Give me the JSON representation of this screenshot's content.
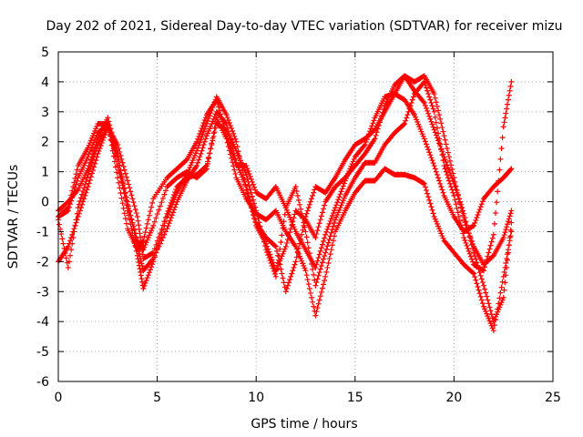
{
  "chart_data": {
    "type": "scatter",
    "title": "Day 202 of 2021, Sidereal Day-to-day VTEC variation (SDTVAR) for receiver mizu",
    "xlabel": "GPS time / hours",
    "ylabel": "SDTVAR / TECUs",
    "xlim": [
      0,
      25
    ],
    "ylim": [
      -6,
      5
    ],
    "x_ticks": [
      "0",
      "5",
      "10",
      "15",
      "20",
      "25"
    ],
    "y_ticks": [
      "5",
      "4",
      "3",
      "2",
      "1",
      "0",
      "-1",
      "-2",
      "-3",
      "-4",
      "-5",
      "-6"
    ],
    "grid": true,
    "marker": "+",
    "color": "#ff0000",
    "series": [
      {
        "points": [
          [
            0,
            -2
          ],
          [
            0.5,
            -1.5
          ],
          [
            1,
            -0.5
          ],
          [
            1.5,
            0.5
          ],
          [
            2,
            1.6
          ],
          [
            2.5,
            2.5
          ],
          [
            3,
            1.5
          ],
          [
            3.5,
            0
          ],
          [
            4,
            -1.5
          ],
          [
            4.3,
            -2.3
          ],
          [
            4.8,
            -1.9
          ],
          [
            5.5,
            -0.9
          ],
          [
            6,
            0
          ],
          [
            6.5,
            0.7
          ],
          [
            7,
            1.2
          ],
          [
            7.5,
            2.2
          ],
          [
            8,
            3
          ],
          [
            8.5,
            2.6
          ],
          [
            9,
            1.3
          ],
          [
            9.5,
            0.5
          ],
          [
            10,
            -0.7
          ],
          [
            10.5,
            -1.2
          ],
          [
            11,
            -1.5
          ],
          [
            11.5,
            -3
          ],
          [
            12,
            -2
          ],
          [
            12.5,
            -0.5
          ],
          [
            13,
            0.5
          ],
          [
            13.5,
            0.3
          ],
          [
            14,
            0.8
          ],
          [
            14.5,
            1.4
          ],
          [
            15,
            1.9
          ],
          [
            15.5,
            2.1
          ],
          [
            16,
            2.4
          ],
          [
            16.5,
            3
          ],
          [
            17,
            3.6
          ],
          [
            17.5,
            4.2
          ],
          [
            18,
            4
          ],
          [
            18.5,
            4.2
          ],
          [
            19,
            3.6
          ],
          [
            19.5,
            2.2
          ],
          [
            20,
            0.8
          ],
          [
            20.5,
            -0.6
          ],
          [
            21,
            -1.5
          ],
          [
            21.5,
            -2.1
          ],
          [
            22,
            -1.8
          ],
          [
            22.5,
            -1.2
          ],
          [
            22.9,
            -0.3
          ]
        ]
      },
      {
        "points": [
          [
            0,
            -0.3
          ],
          [
            0.5,
            0
          ],
          [
            1,
            0.4
          ],
          [
            1.5,
            1.1
          ],
          [
            2,
            2.1
          ],
          [
            2.5,
            2.8
          ],
          [
            3,
            1.6
          ],
          [
            3.5,
            -0.3
          ],
          [
            4,
            -1.8
          ],
          [
            4.3,
            -2.9
          ],
          [
            4.8,
            -2
          ],
          [
            5.5,
            -0.5
          ],
          [
            6,
            0.3
          ],
          [
            6.5,
            0.9
          ],
          [
            7,
            1.7
          ],
          [
            7.5,
            2.6
          ],
          [
            8,
            3.5
          ],
          [
            8.5,
            2.9
          ],
          [
            9,
            2
          ],
          [
            9.5,
            0.4
          ],
          [
            10,
            -0.8
          ],
          [
            10.5,
            -1.4
          ],
          [
            11,
            -2.3
          ],
          [
            11.5,
            -1.5
          ],
          [
            12,
            -0.3
          ],
          [
            12.5,
            -0.6
          ],
          [
            13,
            -1.2
          ],
          [
            13.5,
            0
          ],
          [
            14,
            0.5
          ],
          [
            14.5,
            0.8
          ],
          [
            15,
            1.2
          ],
          [
            15.5,
            1.6
          ],
          [
            16,
            2.1
          ],
          [
            16.5,
            3.2
          ],
          [
            17,
            3.9
          ],
          [
            17.5,
            4.2
          ],
          [
            18,
            3.7
          ],
          [
            18.5,
            3.3
          ],
          [
            19,
            2.4
          ],
          [
            19.5,
            1.5
          ],
          [
            20,
            0.6
          ],
          [
            20.5,
            -0.4
          ],
          [
            21,
            -1.7
          ],
          [
            21.5,
            -2.8
          ],
          [
            22,
            -4
          ],
          [
            22.5,
            -3.2
          ],
          [
            22.9,
            -0.7
          ]
        ]
      },
      {
        "points": [
          [
            0,
            -0.5
          ],
          [
            0.5,
            -0.3
          ],
          [
            1,
            0.8
          ],
          [
            1.5,
            1.5
          ],
          [
            2,
            2.3
          ],
          [
            2.5,
            2.6
          ],
          [
            3,
            1.2
          ],
          [
            3.5,
            -0.1
          ],
          [
            4,
            -1.3
          ],
          [
            4.3,
            -1.6
          ],
          [
            4.8,
            -0.8
          ],
          [
            5.5,
            0.5
          ],
          [
            6,
            0.8
          ],
          [
            6.5,
            1
          ],
          [
            7,
            0.8
          ],
          [
            7.5,
            1.1
          ],
          [
            8,
            2.8
          ],
          [
            8.5,
            2.1
          ],
          [
            9,
            0.8
          ],
          [
            9.5,
            0.1
          ],
          [
            10,
            -0.4
          ],
          [
            10.5,
            -0.6
          ],
          [
            11,
            -0.3
          ],
          [
            11.5,
            -1
          ],
          [
            12,
            -1.5
          ],
          [
            12.5,
            -2.3
          ],
          [
            13,
            -3.8
          ],
          [
            13.5,
            -2.5
          ],
          [
            14,
            -1
          ],
          [
            14.5,
            -0.3
          ],
          [
            15,
            0.3
          ],
          [
            15.5,
            0.7
          ],
          [
            16,
            0.7
          ],
          [
            16.5,
            1.1
          ],
          [
            17,
            0.9
          ],
          [
            17.5,
            0.9
          ],
          [
            18,
            0.8
          ],
          [
            18.5,
            0.6
          ],
          [
            19,
            -0.5
          ],
          [
            19.5,
            -1.3
          ],
          [
            20,
            -1.7
          ],
          [
            20.5,
            -2.1
          ],
          [
            21,
            -2.4
          ],
          [
            21.5,
            -3.5
          ],
          [
            22,
            -4.3
          ],
          [
            22.5,
            -2.5
          ],
          [
            22.9,
            -1
          ]
        ]
      },
      {
        "points": [
          [
            0,
            -0.5
          ],
          [
            0.5,
            -0.2
          ],
          [
            1,
            1.2
          ],
          [
            1.5,
            1.8
          ],
          [
            2,
            2.6
          ],
          [
            2.5,
            2.6
          ],
          [
            3,
            0.8
          ],
          [
            3.5,
            -0.9
          ],
          [
            4,
            -1.6
          ],
          [
            4.3,
            -1.3
          ],
          [
            4.8,
            0.1
          ],
          [
            5.5,
            0.8
          ],
          [
            6,
            1.1
          ],
          [
            6.5,
            1.4
          ],
          [
            7,
            2
          ],
          [
            7.5,
            2.9
          ],
          [
            8,
            3.4
          ],
          [
            8.5,
            2.2
          ],
          [
            9,
            1.2
          ],
          [
            9.5,
            1.2
          ],
          [
            10,
            0.3
          ],
          [
            10.5,
            0.1
          ],
          [
            11,
            0.5
          ],
          [
            11.5,
            -0.2
          ],
          [
            12,
            -1
          ],
          [
            12.5,
            -1.6
          ],
          [
            13,
            -2.2
          ],
          [
            13.5,
            -1.1
          ],
          [
            14,
            -0.2
          ],
          [
            14.5,
            0.7
          ],
          [
            15,
            1.5
          ],
          [
            15.5,
            1.9
          ],
          [
            16,
            2.8
          ],
          [
            16.5,
            3.5
          ],
          [
            17,
            3.6
          ],
          [
            17.5,
            3.4
          ],
          [
            18,
            2.9
          ],
          [
            18.5,
            2.1
          ],
          [
            19,
            1.2
          ],
          [
            19.5,
            0.2
          ],
          [
            20,
            -0.5
          ],
          [
            20.5,
            -1
          ],
          [
            21,
            -0.8
          ],
          [
            21.5,
            0.1
          ],
          [
            22,
            0.5
          ],
          [
            22.5,
            0.8
          ],
          [
            22.9,
            1.1
          ]
        ]
      },
      {
        "points": [
          [
            0,
            -0.6
          ],
          [
            0.5,
            -2.2
          ],
          [
            1,
            -0.2
          ],
          [
            1.5,
            0.9
          ],
          [
            2,
            1.9
          ],
          [
            2.5,
            2.5
          ],
          [
            3,
            1.9
          ],
          [
            3.5,
            0.7
          ],
          [
            4,
            -0.5
          ],
          [
            4.3,
            -1.9
          ],
          [
            4.8,
            -1.7
          ],
          [
            5.5,
            -0.4
          ],
          [
            6,
            0.5
          ],
          [
            6.5,
            0.8
          ],
          [
            7,
            0.9
          ],
          [
            7.5,
            1.2
          ],
          [
            8,
            2.6
          ],
          [
            8.5,
            2.4
          ],
          [
            9,
            1.7
          ],
          [
            9.5,
            0.9
          ],
          [
            10,
            -0.3
          ],
          [
            10.5,
            -1.6
          ],
          [
            11,
            -2.5
          ],
          [
            11.5,
            -0.2
          ],
          [
            12,
            0.5
          ],
          [
            12.5,
            -1
          ],
          [
            13,
            -2.8
          ],
          [
            13.5,
            -1.7
          ],
          [
            14,
            -0.6
          ],
          [
            14.5,
            0.2
          ],
          [
            15,
            0.8
          ],
          [
            15.5,
            1.3
          ],
          [
            16,
            1.3
          ],
          [
            16.5,
            1.9
          ],
          [
            17,
            2.3
          ],
          [
            17.5,
            2.6
          ],
          [
            18,
            3.6
          ],
          [
            18.5,
            4
          ],
          [
            19,
            3
          ],
          [
            19.5,
            1.2
          ],
          [
            20,
            0.2
          ],
          [
            20.5,
            -1.2
          ],
          [
            21,
            -2.1
          ],
          [
            21.5,
            -2.3
          ],
          [
            22,
            -1.1
          ],
          [
            22.5,
            2.5
          ],
          [
            22.9,
            4
          ]
        ]
      }
    ]
  }
}
